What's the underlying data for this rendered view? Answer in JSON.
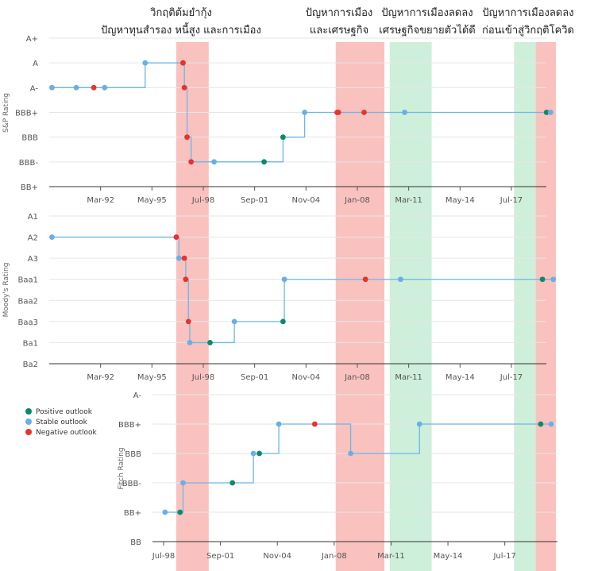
{
  "annotations": [
    {
      "lines": [
        "วิกฤติต้มยำกุ้ง",
        "ปัญหาทุนสำรอง หนี้สูง และการเมือง"
      ]
    },
    {
      "lines": [
        "ปัญหาการเมือง",
        "และเศรษฐกิจ"
      ]
    },
    {
      "lines": [
        "ปัญหาการเมืองลดลง",
        "เศรษฐกิจขยายตัวได้ดี"
      ]
    },
    {
      "lines": [
        "ปัญหาการเมืองลดลง",
        "ก่อนเข้าสู่วิกฤติโควิด"
      ]
    }
  ],
  "legend": [
    {
      "label": "Positive outlook",
      "color": "#0b8a6a"
    },
    {
      "label": "Stable outlook",
      "color": "#6aaee6"
    },
    {
      "label": "Negative outlook",
      "color": "#e8332a"
    }
  ],
  "colors": {
    "line": "#6ab7e8",
    "line_dark": "#8b8bc8",
    "band_red": "#f8b7b4",
    "band_green": "#c6ecd4",
    "grid": "#e6e6e6"
  },
  "chart_data": [
    {
      "type": "line",
      "title": "",
      "ylabel": "S&P Rating",
      "step": true,
      "categories": [
        "BB+",
        "BBB-",
        "BBB",
        "BBB+",
        "A-",
        "A",
        "A+"
      ],
      "x_ticks": [
        "Mar-92",
        "May-95",
        "Jul-98",
        "Sep-01",
        "Nov-04",
        "Jan-08",
        "Mar-11",
        "May-14",
        "Jul-17"
      ],
      "xlim": [
        "1989-01",
        "2020-04"
      ],
      "points": [
        {
          "x": "1989-03",
          "y": "A-",
          "outlook": "Stable"
        },
        {
          "x": "1990-09",
          "y": "A-",
          "outlook": "Stable"
        },
        {
          "x": "1991-10",
          "y": "A-",
          "outlook": "Negative"
        },
        {
          "x": "1992-06",
          "y": "A-",
          "outlook": "Stable"
        },
        {
          "x": "1994-12",
          "y": "A",
          "outlook": "Stable"
        },
        {
          "x": "1997-04",
          "y": "A",
          "outlook": "Negative"
        },
        {
          "x": "1997-05",
          "y": "A-",
          "outlook": "Negative"
        },
        {
          "x": "1997-07",
          "y": "BBB",
          "outlook": "Negative"
        },
        {
          "x": "1997-10",
          "y": "BBB-",
          "outlook": "Negative"
        },
        {
          "x": "1999-03",
          "y": "BBB-",
          "outlook": "Stable"
        },
        {
          "x": "2002-04",
          "y": "BBB-",
          "outlook": "Positive"
        },
        {
          "x": "2003-06",
          "y": "BBB",
          "outlook": "Positive"
        },
        {
          "x": "2004-10",
          "y": "BBB+",
          "outlook": "Stable"
        },
        {
          "x": "2006-10",
          "y": "BBB+",
          "outlook": "Negative"
        },
        {
          "x": "2006-11",
          "y": "BBB+",
          "outlook": "Negative"
        },
        {
          "x": "2008-06",
          "y": "BBB+",
          "outlook": "Negative"
        },
        {
          "x": "2010-12",
          "y": "BBB+",
          "outlook": "Stable"
        },
        {
          "x": "2019-09",
          "y": "BBB+",
          "outlook": "Positive"
        },
        {
          "x": "2019-12",
          "y": "BBB+",
          "outlook": "Stable"
        }
      ]
    },
    {
      "type": "line",
      "title": "",
      "ylabel": "Moody's Rating",
      "step": true,
      "categories": [
        "Ba2",
        "Ba1",
        "Baa3",
        "Baa2",
        "Baa1",
        "A3",
        "A2",
        "A1"
      ],
      "x_ticks": [
        "Mar-92",
        "May-95",
        "Jul-98",
        "Sep-01",
        "Nov-04",
        "Jan-08",
        "Mar-11",
        "May-14",
        "Jul-17"
      ],
      "xlim": [
        "1989-01",
        "2020-04"
      ],
      "points": [
        {
          "x": "1989-03",
          "y": "A2",
          "outlook": "Stable"
        },
        {
          "x": "1996-11",
          "y": "A2",
          "outlook": "Negative"
        },
        {
          "x": "1997-01",
          "y": "A3",
          "outlook": "Stable"
        },
        {
          "x": "1997-05",
          "y": "A3",
          "outlook": "Negative"
        },
        {
          "x": "1997-06",
          "y": "Baa1",
          "outlook": "Negative"
        },
        {
          "x": "1997-08",
          "y": "Baa3",
          "outlook": "Negative"
        },
        {
          "x": "1997-09",
          "y": "Ba1",
          "outlook": "Stable"
        },
        {
          "x": "1998-12",
          "y": "Ba1",
          "outlook": "Positive"
        },
        {
          "x": "2000-06",
          "y": "Baa3",
          "outlook": "Stable"
        },
        {
          "x": "2003-06",
          "y": "Baa3",
          "outlook": "Positive"
        },
        {
          "x": "2003-07",
          "y": "Baa1",
          "outlook": "Stable"
        },
        {
          "x": "2008-07",
          "y": "Baa1",
          "outlook": "Negative"
        },
        {
          "x": "2010-09",
          "y": "Baa1",
          "outlook": "Stable"
        },
        {
          "x": "2019-06",
          "y": "Baa1",
          "outlook": "Positive"
        },
        {
          "x": "2020-02",
          "y": "Baa1",
          "outlook": "Stable"
        }
      ]
    },
    {
      "type": "line",
      "title": "",
      "ylabel": "Fitch Rating",
      "step": true,
      "categories": [
        "BB",
        "BB+",
        "BBB-",
        "BBB",
        "BBB+",
        "A-"
      ],
      "x_ticks": [
        "Jul-98",
        "Sep-01",
        "Nov-04",
        "Jan-08",
        "Mar-11",
        "May-14",
        "Jul-17"
      ],
      "xlim": [
        "1998-05",
        "2020-04"
      ],
      "points": [
        {
          "x": "1998-08",
          "y": "BB+",
          "outlook": "Stable"
        },
        {
          "x": "1999-06",
          "y": "BB+",
          "outlook": "Positive"
        },
        {
          "x": "1999-08",
          "y": "BBB-",
          "outlook": "Stable"
        },
        {
          "x": "2002-05",
          "y": "BBB-",
          "outlook": "Positive"
        },
        {
          "x": "2003-07",
          "y": "BBB",
          "outlook": "Stable"
        },
        {
          "x": "2003-11",
          "y": "BBB",
          "outlook": "Positive"
        },
        {
          "x": "2004-12",
          "y": "BBB+",
          "outlook": "Stable"
        },
        {
          "x": "2006-12",
          "y": "BBB+",
          "outlook": "Negative"
        },
        {
          "x": "2008-12",
          "y": "BBB",
          "outlook": "Stable"
        },
        {
          "x": "2012-10",
          "y": "BBB+",
          "outlook": "Stable"
        },
        {
          "x": "2019-07",
          "y": "BBB+",
          "outlook": "Positive"
        },
        {
          "x": "2020-02",
          "y": "BBB+",
          "outlook": "Stable"
        }
      ]
    }
  ],
  "bands": [
    {
      "start": "1996-11",
      "end": "1998-11",
      "color": "red"
    },
    {
      "start": "2006-09",
      "end": "2009-09",
      "color": "red"
    },
    {
      "start": "2010-01",
      "end": "2012-08",
      "color": "green"
    },
    {
      "start": "2017-09",
      "end": "2019-01",
      "color": "green"
    },
    {
      "start": "2019-01",
      "end": "2020-04",
      "color": "red"
    }
  ]
}
